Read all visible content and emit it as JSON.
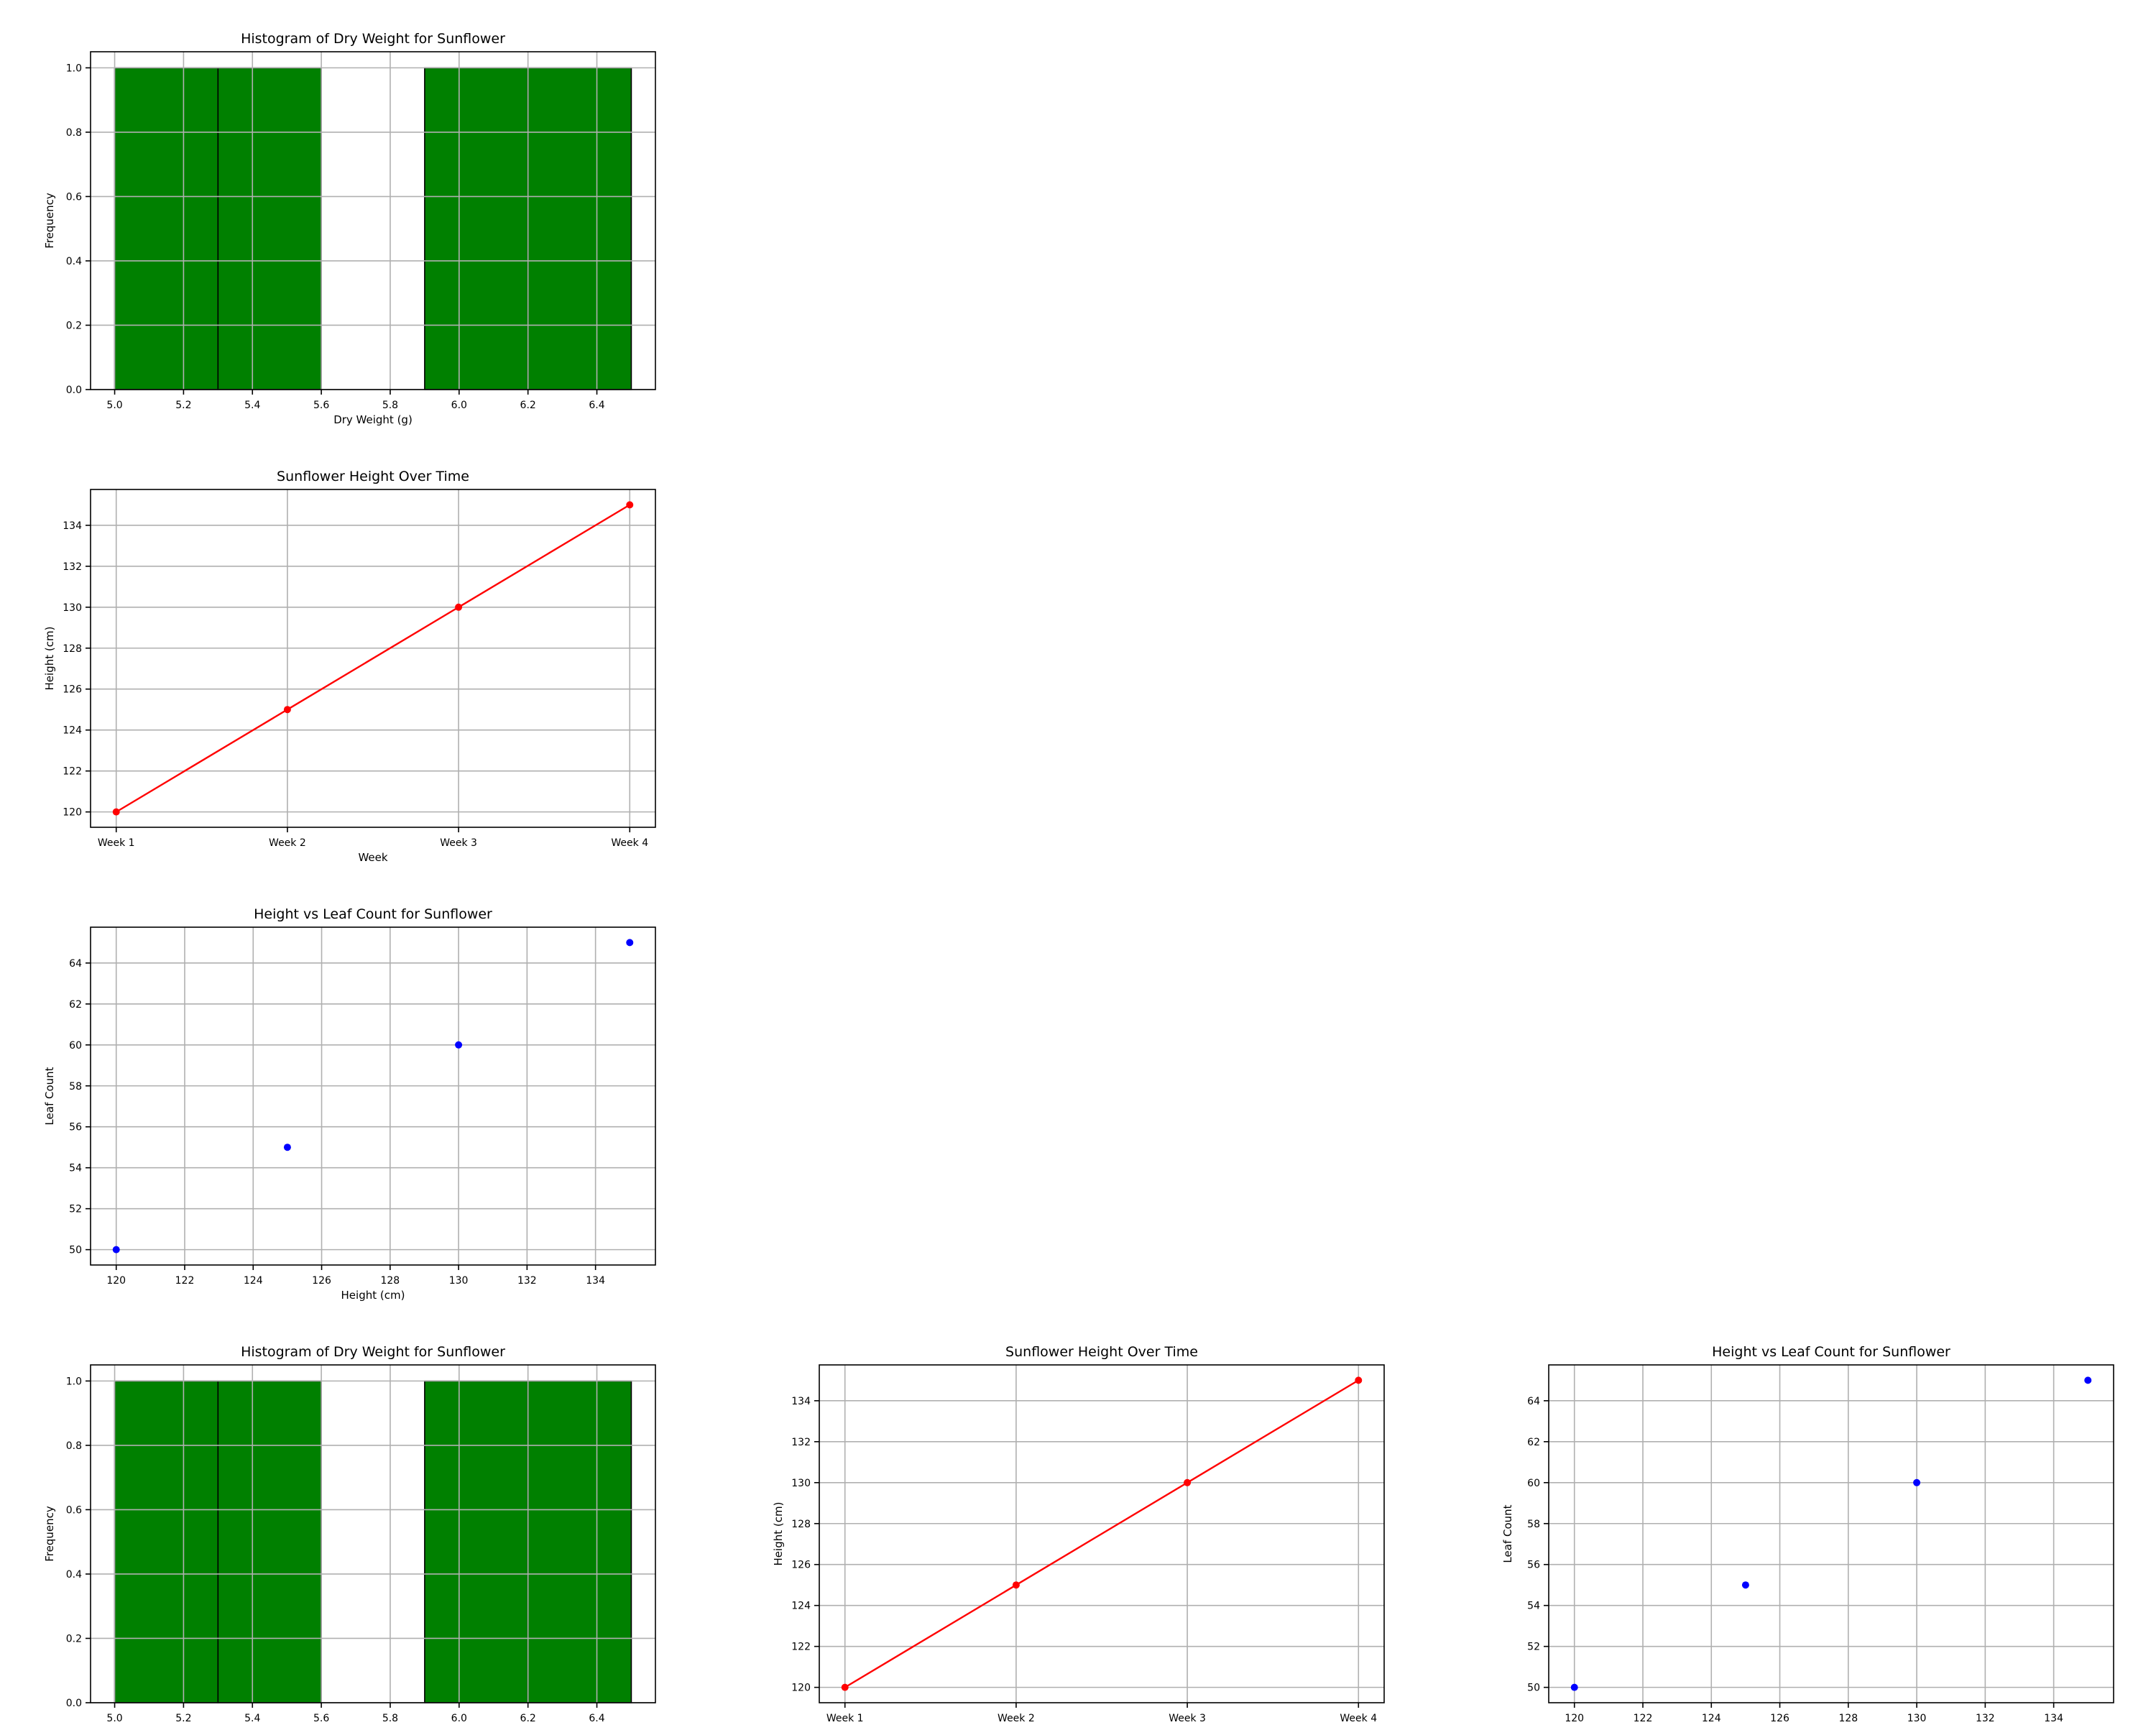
{
  "chart_data": [
    {
      "type": "bar",
      "subtype": "histogram",
      "title": "Histogram of Dry Weight for Sunflower",
      "xlabel": "Dry Weight (g)",
      "ylabel": "Frequency",
      "xlim": [
        4.93,
        6.57
      ],
      "ylim": [
        0,
        1.05
      ],
      "xticks": [
        5.0,
        5.2,
        5.4,
        5.6,
        5.8,
        6.0,
        6.2,
        6.4
      ],
      "yticks": [
        0.0,
        0.2,
        0.4,
        0.6,
        0.8,
        1.0
      ],
      "tick_decimals": [
        1,
        1
      ],
      "bins": [
        {
          "start": 5.0,
          "end": 5.3,
          "count": 1
        },
        {
          "start": 5.3,
          "end": 5.6,
          "count": 1
        },
        {
          "start": 5.6,
          "end": 5.9,
          "count": 0
        },
        {
          "start": 5.9,
          "end": 6.2,
          "count": 1
        },
        {
          "start": 6.2,
          "end": 6.5,
          "count": 1
        }
      ],
      "grid": true,
      "color": "#008000"
    },
    {
      "type": "line",
      "title": "Sunflower Height Over Time",
      "xlabel": "Week",
      "ylabel": "Height (cm)",
      "categories": [
        "Week 1",
        "Week 2",
        "Week 3",
        "Week 4"
      ],
      "values": [
        120,
        125,
        130,
        135
      ],
      "ylim": [
        119.25,
        135.75
      ],
      "yticks": [
        120,
        122,
        124,
        126,
        128,
        130,
        132,
        134
      ],
      "grid": true,
      "color": "#ff0000",
      "marker": "o"
    },
    {
      "type": "scatter",
      "title": "Height vs Leaf Count for Sunflower",
      "xlabel": "Height (cm)",
      "ylabel": "Leaf Count",
      "x": [
        120,
        125,
        130,
        135
      ],
      "y": [
        50,
        55,
        60,
        65
      ],
      "xlim": [
        119.25,
        135.75
      ],
      "ylim": [
        49.25,
        65.75
      ],
      "xticks": [
        120,
        122,
        124,
        126,
        128,
        130,
        132,
        134
      ],
      "yticks": [
        50,
        52,
        54,
        56,
        58,
        60,
        62,
        64
      ],
      "grid": true,
      "color": "#0000ff"
    }
  ],
  "panels": [
    {
      "chart": 0
    },
    {
      "chart": 1
    },
    {
      "chart": 2
    },
    {
      "chart": 0
    },
    {
      "chart": 1
    },
    {
      "chart": 2
    }
  ]
}
